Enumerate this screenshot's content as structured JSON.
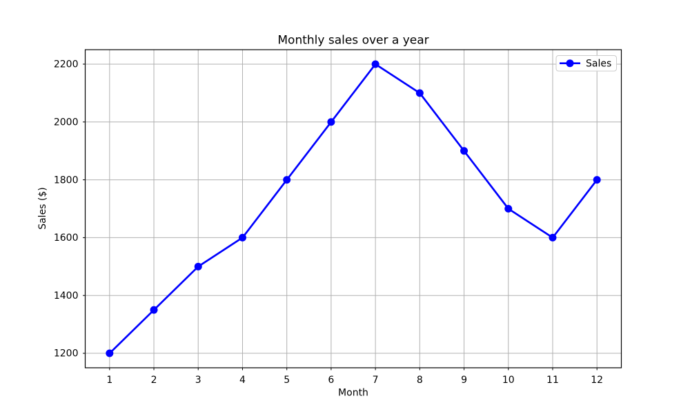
{
  "chart_data": {
    "type": "line",
    "title": "Monthly sales over a year",
    "xlabel": "Month",
    "ylabel": "Sales ($)",
    "x": [
      1,
      2,
      3,
      4,
      5,
      6,
      7,
      8,
      9,
      10,
      11,
      12
    ],
    "xtick_labels": [
      "1",
      "2",
      "3",
      "4",
      "5",
      "6",
      "7",
      "8",
      "9",
      "10",
      "11",
      "12"
    ],
    "yticks": [
      1200,
      1400,
      1600,
      1800,
      2000,
      2200
    ],
    "ytick_labels": [
      "1200",
      "1400",
      "1600",
      "1800",
      "2000",
      "2200"
    ],
    "xlim": [
      0.45,
      12.55
    ],
    "ylim": [
      1150,
      2250
    ],
    "grid": true,
    "legend": {
      "label": "Sales",
      "position": "upper right"
    },
    "series": [
      {
        "name": "Sales",
        "marker": "circle",
        "color": "#0000ff",
        "values": [
          1200,
          1350,
          1500,
          1600,
          1800,
          2000,
          2200,
          2100,
          1900,
          1700,
          1600,
          1800
        ]
      }
    ],
    "colors": {
      "line": "#0000ff",
      "grid": "#b0b0b0",
      "spine": "#000000",
      "text": "#000000",
      "background": "#ffffff",
      "legend_border": "#cccccc",
      "legend_fill": "#ffffff"
    }
  }
}
